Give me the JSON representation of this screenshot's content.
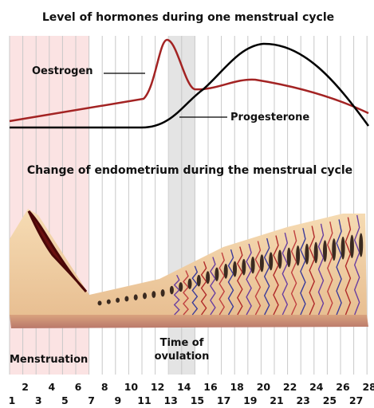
{
  "titles": [
    "Level of hormones during one menstrual cycle",
    "Change of endometrium during the menstrual cycle"
  ],
  "hormones": [
    "Oestrogen",
    "Progesterone"
  ],
  "phases": {
    "menstruation": "Menstruation",
    "ovulation": [
      "Time of",
      "ovulation"
    ]
  },
  "days": {
    "even": [
      "2",
      "4",
      "6",
      "8",
      "10",
      "12",
      "14",
      "16",
      "18",
      "20",
      "22",
      "24",
      "26",
      "28"
    ],
    "odd": [
      "1",
      "3",
      "5",
      "7",
      "9",
      "11",
      "13",
      "15",
      "17",
      "19",
      "21",
      "23",
      "25",
      "27"
    ]
  }
}
